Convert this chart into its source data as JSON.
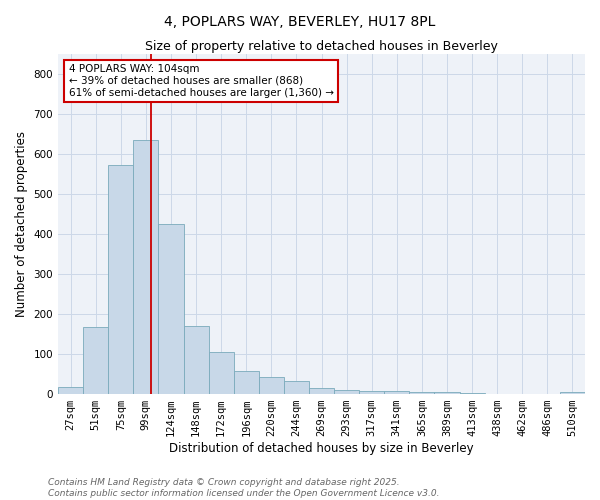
{
  "title": "4, POPLARS WAY, BEVERLEY, HU17 8PL",
  "subtitle": "Size of property relative to detached houses in Beverley",
  "xlabel": "Distribution of detached houses by size in Beverley",
  "ylabel": "Number of detached properties",
  "categories": [
    "27sqm",
    "51sqm",
    "75sqm",
    "99sqm",
    "124sqm",
    "148sqm",
    "172sqm",
    "196sqm",
    "220sqm",
    "244sqm",
    "269sqm",
    "293sqm",
    "317sqm",
    "341sqm",
    "365sqm",
    "389sqm",
    "413sqm",
    "438sqm",
    "462sqm",
    "486sqm",
    "510sqm"
  ],
  "values": [
    18,
    168,
    572,
    635,
    425,
    170,
    105,
    57,
    42,
    32,
    15,
    10,
    8,
    7,
    5,
    4,
    2,
    0,
    0,
    0,
    5
  ],
  "bar_color": "#c8d8e8",
  "bar_edge_color": "#7aaabb",
  "annotation_box_color": "#cc0000",
  "property_line_label": "4 POPLARS WAY: 104sqm",
  "annotation_line1": "← 39% of detached houses are smaller (868)",
  "annotation_line2": "61% of semi-detached houses are larger (1,360) →",
  "ylim": [
    0,
    850
  ],
  "yticks": [
    0,
    100,
    200,
    300,
    400,
    500,
    600,
    700,
    800
  ],
  "grid_color": "#ccd8e8",
  "background_color": "#eef2f8",
  "footer_line1": "Contains HM Land Registry data © Crown copyright and database right 2025.",
  "footer_line2": "Contains public sector information licensed under the Open Government Licence v3.0.",
  "title_fontsize": 10,
  "subtitle_fontsize": 9,
  "axis_label_fontsize": 8.5,
  "tick_fontsize": 7.5,
  "annotation_fontsize": 7.5,
  "footer_fontsize": 6.5
}
